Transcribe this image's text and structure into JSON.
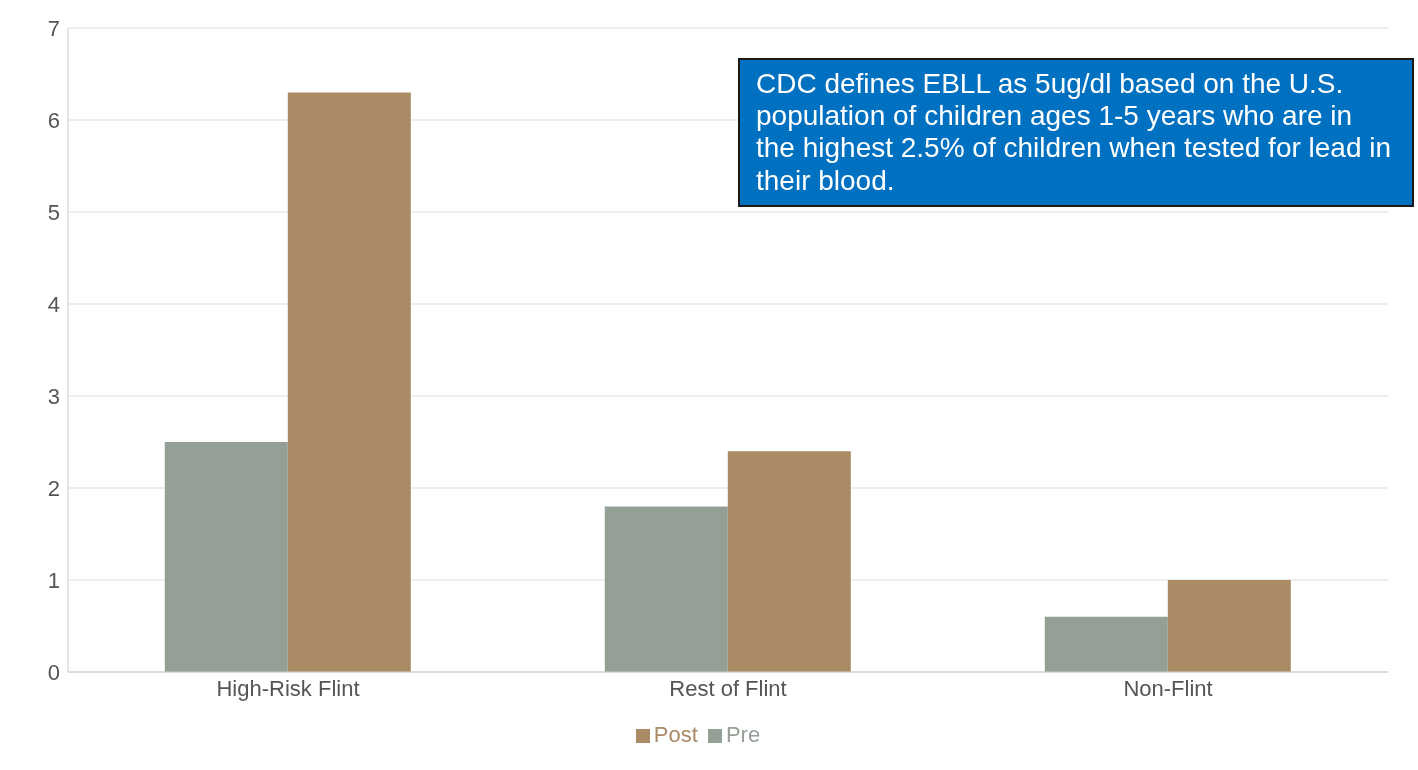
{
  "chart_data": {
    "type": "bar",
    "categories": [
      "High-Risk Flint",
      "Rest of Flint",
      "Non-Flint"
    ],
    "series": [
      {
        "name": "Pre",
        "color": "#949f95",
        "values": [
          2.5,
          1.8,
          0.6
        ]
      },
      {
        "name": "Post",
        "color": "#ab8b66",
        "values": [
          6.3,
          2.4,
          1.0
        ]
      }
    ],
    "ylim": [
      0,
      7
    ],
    "yticks": [
      0,
      1,
      2,
      3,
      4,
      5,
      6,
      7
    ],
    "grid": "y",
    "legend": "bottom",
    "annotations": [
      "CDC defines EBLL as 5ug/dl based on the U.S. population of children ages 1-5 years who are in the highest 2.5% of children when tested for lead in their blood."
    ]
  }
}
